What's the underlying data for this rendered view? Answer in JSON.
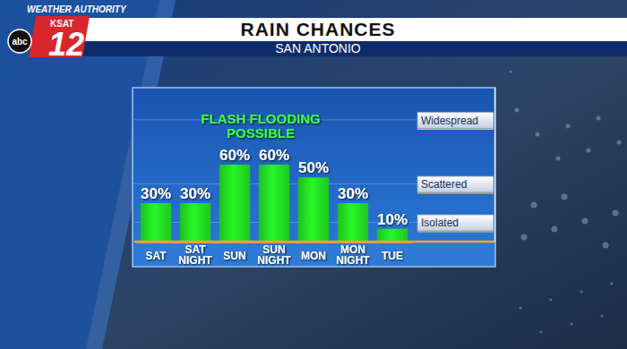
{
  "chart_data": {
    "type": "bar",
    "title": "RAIN CHANCES",
    "subtitle": "SAN ANTONIO",
    "annotation": [
      "FLASH FLOODING",
      "POSSIBLE"
    ],
    "categories": [
      "SAT",
      "SAT NIGHT",
      "SUN",
      "SUN NIGHT",
      "MON",
      "MON NIGHT",
      "TUE"
    ],
    "values": [
      30,
      30,
      60,
      60,
      50,
      30,
      10
    ],
    "value_labels": [
      "30%",
      "30%",
      "60%",
      "60%",
      "50%",
      "30%",
      "10%"
    ],
    "data_labels": true,
    "color": "#22dd22",
    "ylim": [
      0,
      120
    ],
    "yticks": [
      {
        "value": 15,
        "label": "Isolated"
      },
      {
        "value": 45,
        "label": "Scattered"
      },
      {
        "value": 95,
        "label": "Widespread"
      }
    ],
    "grid": true
  },
  "branding": {
    "slogan": "WEATHER AUTHORITY",
    "station": "KSAT",
    "channel": "12",
    "network": "abc"
  }
}
